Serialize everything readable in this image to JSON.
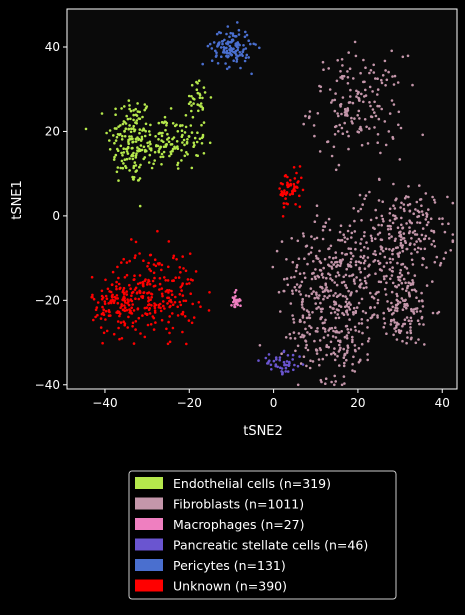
{
  "chart_data": {
    "type": "scatter",
    "xlabel": "tSNE2",
    "ylabel": "tSNE1",
    "xlim": [
      -49,
      43.5
    ],
    "ylim": [
      -41,
      49
    ],
    "xticks": [
      -40,
      -20,
      0,
      20,
      40
    ],
    "yticks": [
      -40,
      -20,
      0,
      20,
      40
    ],
    "grid": false,
    "legend_position": "below plot",
    "background_color": "#0a0a0a",
    "axes_color": "#ffffff",
    "series": [
      {
        "name": "Endothelial cells (n=319)",
        "color": "#b5e84c",
        "n": 319,
        "clusters": [
          {
            "cx": -34,
            "cy": 18,
            "sx": 2.6,
            "sy": 5.5,
            "n": 150
          },
          {
            "cx": -27,
            "cy": 17,
            "sx": 3.0,
            "sy": 3.5,
            "n": 80
          },
          {
            "cx": -21,
            "cy": 18,
            "sx": 2.5,
            "sy": 3.5,
            "n": 60
          },
          {
            "cx": -18,
            "cy": 28,
            "sx": 1.5,
            "sy": 2.0,
            "n": 29
          }
        ]
      },
      {
        "name": "Fibroblasts (n=1011)",
        "color": "#c496aa",
        "n": 1011,
        "clusters": [
          {
            "cx": 20,
            "cy": 26,
            "sx": 5.5,
            "sy": 6.0,
            "n": 170
          },
          {
            "cx": 31,
            "cy": -5,
            "sx": 5.0,
            "sy": 6.0,
            "n": 230
          },
          {
            "cx": 16,
            "cy": -12,
            "sx": 5.5,
            "sy": 6.0,
            "n": 200
          },
          {
            "cx": 30,
            "cy": -22,
            "sx": 4.0,
            "sy": 4.5,
            "n": 150
          },
          {
            "cx": 15,
            "cy": -28,
            "sx": 4.5,
            "sy": 5.5,
            "n": 180
          },
          {
            "cx": 8,
            "cy": -18,
            "sx": 3.5,
            "sy": 6.0,
            "n": 81
          }
        ]
      },
      {
        "name": "Macrophages (n=27)",
        "color": "#ef7fc0",
        "n": 27,
        "clusters": [
          {
            "cx": -9,
            "cy": -20,
            "sx": 0.5,
            "sy": 1.0,
            "n": 27
          }
        ]
      },
      {
        "name": "Pancreatic stellate cells (n=46)",
        "color": "#6a55d0",
        "n": 46,
        "clusters": [
          {
            "cx": 2,
            "cy": -35,
            "sx": 2.5,
            "sy": 1.2,
            "n": 46
          }
        ]
      },
      {
        "name": "Pericytes (n=131)",
        "color": "#4a6fcf",
        "n": 131,
        "clusters": [
          {
            "cx": -10,
            "cy": 40,
            "sx": 2.3,
            "sy": 2.2,
            "n": 131
          }
        ]
      },
      {
        "name": "Unknown (n=390)",
        "color": "#ff0000",
        "n": 390,
        "clusters": [
          {
            "cx": 4,
            "cy": 6,
            "sx": 1.5,
            "sy": 2.3,
            "n": 60
          },
          {
            "cx": -28,
            "cy": -18,
            "sx": 5.0,
            "sy": 5.0,
            "n": 210
          },
          {
            "cx": -37,
            "cy": -21,
            "sx": 3.0,
            "sy": 3.5,
            "n": 120
          }
        ]
      }
    ]
  }
}
